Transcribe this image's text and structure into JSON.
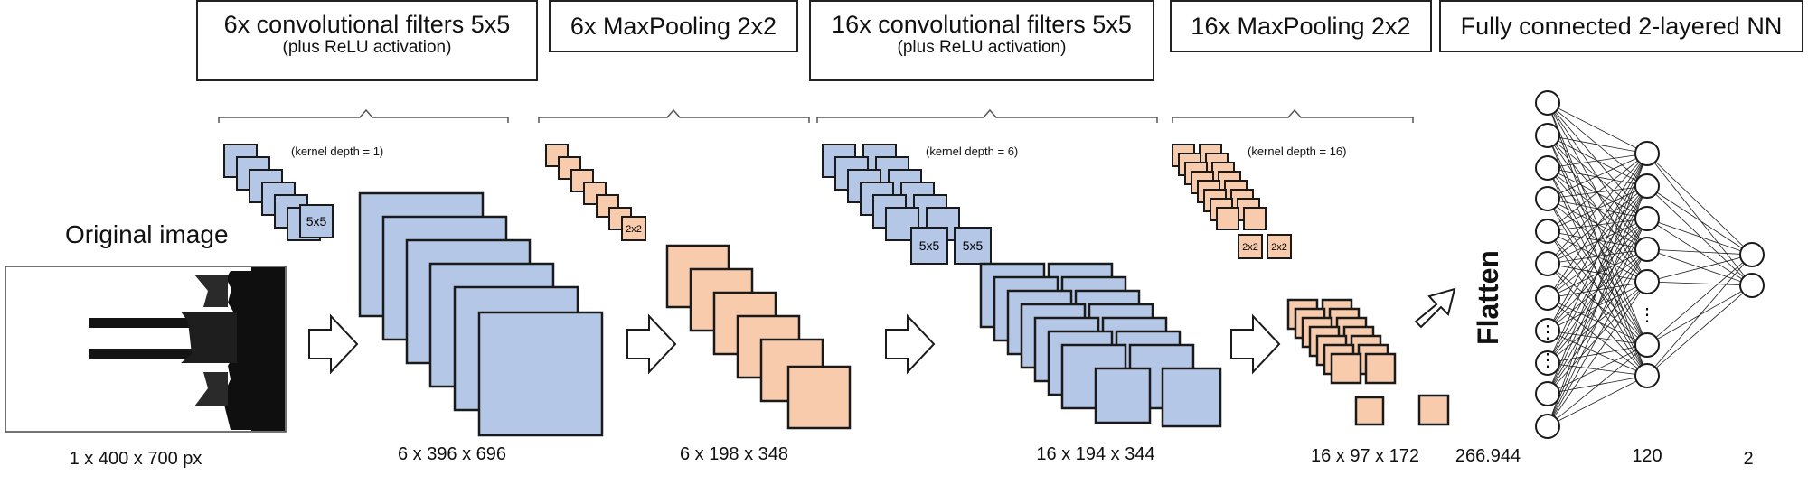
{
  "stages": [
    {
      "title": "6x convolutional filters 5x5",
      "subtitle": "(plus ReLU activation)"
    },
    {
      "title": "6x MaxPooling 2x2",
      "subtitle": ""
    },
    {
      "title": "16x convolutional filters 5x5",
      "subtitle": "(plus ReLU activation)"
    },
    {
      "title": "16x MaxPooling 2x2",
      "subtitle": ""
    },
    {
      "title": "Fully connected 2-layered NN",
      "subtitle": ""
    }
  ],
  "original_image_title": "Original image",
  "kernel_labels": [
    "(kernel depth = 1)",
    "(kernel depth = 6)",
    "(kernel depth = 16)"
  ],
  "filter_tags": {
    "conv": "5x5",
    "pool": "2x2"
  },
  "dimensions": [
    "1 x 400 x 700 px",
    "6 x 396 x 696",
    "6 x 198 x 348",
    "16 x 194 x 344",
    "16 x 97 x 172"
  ],
  "flatten_label": "Flatten",
  "nn_layer_sizes": [
    "266.944",
    "120",
    "2"
  ],
  "colors": {
    "blue": "#b4c7e7",
    "orange": "#f8cbad",
    "stroke": "#1a1a1a"
  }
}
